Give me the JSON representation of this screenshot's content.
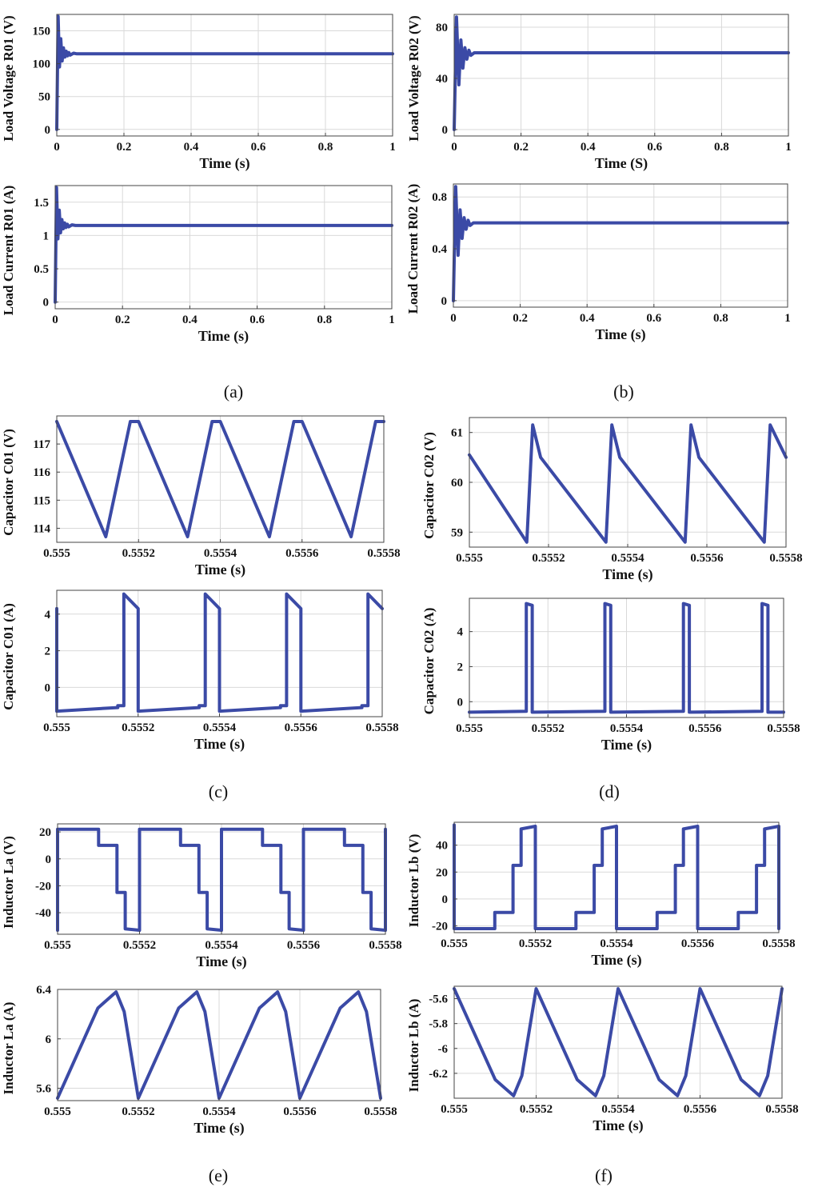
{
  "colors": {
    "trace": "#3b4aa6",
    "grid": "#d9d9d9",
    "axis": "#444444",
    "text": "#111111"
  },
  "captions": {
    "a": "(a)",
    "b": "(b)",
    "c": "(c)",
    "d": "(d)",
    "e": "(e)",
    "f": "(f)"
  },
  "chart_data": [
    {
      "id": "a-top",
      "type": "line",
      "title": "",
      "xlabel": "Time (s)",
      "ylabel": "Load Voltage R01 (V)",
      "xlim": [
        0,
        1
      ],
      "ylim": [
        -10,
        175
      ],
      "xticks": [
        0,
        0.2,
        0.4,
        0.6,
        0.8,
        1
      ],
      "xticklabels": [
        "0",
        "0.2",
        "0.4",
        "0.6",
        "0.8",
        "1"
      ],
      "yticks": [
        0,
        50,
        100,
        150
      ],
      "yticklabels": [
        "0",
        "50",
        "100",
        "150"
      ],
      "grid": true,
      "series": [
        {
          "name": "Load Voltage R01",
          "x": [
            0,
            0.004,
            0.008,
            0.012,
            0.016,
            0.02,
            0.024,
            0.028,
            0.032,
            0.036,
            0.04,
            0.05,
            0.06,
            1
          ],
          "y": [
            0,
            172,
            95,
            138,
            104,
            124,
            110,
            119,
            112,
            117,
            113,
            116,
            115,
            115
          ]
        }
      ]
    },
    {
      "id": "b-top",
      "type": "line",
      "title": "",
      "xlabel": "Time (S)",
      "ylabel": "Load Voltage R02 (V)",
      "xlim": [
        0,
        1
      ],
      "ylim": [
        -5,
        90
      ],
      "xticks": [
        0,
        0.2,
        0.4,
        0.6,
        0.8,
        1
      ],
      "xticklabels": [
        "0",
        "0.2",
        "0.4",
        "0.6",
        "0.8",
        "1"
      ],
      "yticks": [
        0,
        40,
        80
      ],
      "yticklabels": [
        "0",
        "40",
        "80"
      ],
      "grid": true,
      "series": [
        {
          "name": "Load Voltage R02",
          "x": [
            0,
            0.007,
            0.014,
            0.02,
            0.026,
            0.032,
            0.038,
            0.044,
            0.05,
            0.06,
            1
          ],
          "y": [
            0,
            88,
            35,
            70,
            48,
            64,
            55,
            62,
            58,
            60,
            60
          ]
        }
      ]
    },
    {
      "id": "a-bottom",
      "type": "line",
      "title": "",
      "xlabel": "Time (s)",
      "ylabel": "Load Current R01 (A)",
      "xlim": [
        0,
        1
      ],
      "ylim": [
        -0.1,
        1.75
      ],
      "xticks": [
        0,
        0.2,
        0.4,
        0.6,
        0.8,
        1
      ],
      "xticklabels": [
        "0",
        "0.2",
        "0.4",
        "0.6",
        "0.8",
        "1"
      ],
      "yticks": [
        0,
        0.5,
        1,
        1.5
      ],
      "yticklabels": [
        "0",
        "0.5",
        "1",
        "1.5"
      ],
      "grid": true,
      "series": [
        {
          "name": "Load Current R01",
          "x": [
            0,
            0.004,
            0.008,
            0.012,
            0.016,
            0.02,
            0.024,
            0.028,
            0.032,
            0.036,
            0.04,
            0.05,
            0.06,
            1
          ],
          "y": [
            0,
            1.72,
            0.95,
            1.38,
            1.04,
            1.24,
            1.1,
            1.19,
            1.12,
            1.17,
            1.13,
            1.16,
            1.15,
            1.15
          ]
        }
      ]
    },
    {
      "id": "b-bottom",
      "type": "line",
      "title": "",
      "xlabel": "Time (s)",
      "ylabel": "Load Current R02 (A)",
      "xlim": [
        0,
        1
      ],
      "ylim": [
        -0.05,
        0.9
      ],
      "xticks": [
        0,
        0.2,
        0.4,
        0.6,
        0.8,
        1
      ],
      "xticklabels": [
        "0",
        "0.2",
        "0.4",
        "0.6",
        "0.8",
        "1"
      ],
      "yticks": [
        0,
        0.4,
        0.8
      ],
      "yticklabels": [
        "0",
        "0.4",
        "0.8"
      ],
      "grid": true,
      "series": [
        {
          "name": "Load Current R02",
          "x": [
            0,
            0.007,
            0.014,
            0.02,
            0.026,
            0.032,
            0.038,
            0.044,
            0.05,
            0.06,
            1
          ],
          "y": [
            0,
            0.88,
            0.35,
            0.7,
            0.48,
            0.64,
            0.55,
            0.62,
            0.58,
            0.6,
            0.6
          ]
        }
      ]
    },
    {
      "id": "c-top",
      "type": "line",
      "title": "",
      "xlabel": "Time (s)",
      "ylabel": "Capacitor C01 (V)",
      "xlim": [
        0.555,
        0.5558
      ],
      "ylim": [
        113.5,
        118
      ],
      "xticks": [
        0.555,
        0.5552,
        0.5554,
        0.5556,
        0.5558
      ],
      "xticklabels": [
        "0.555",
        "0.5552",
        "0.5554",
        "0.5556",
        "0.5558"
      ],
      "yticks": [
        114,
        115,
        116,
        117
      ],
      "yticklabels": [
        "114",
        "115",
        "116",
        "117"
      ],
      "grid": true,
      "series": [
        {
          "name": "Capacitor C01 voltage",
          "x": [
            0.555,
            0.55512,
            0.55518,
            0.5552,
            0.55532,
            0.55538,
            0.5554,
            0.55552,
            0.55558,
            0.5556,
            0.55572,
            0.55578,
            0.5558
          ],
          "y": [
            117.8,
            113.7,
            117.8,
            117.8,
            113.7,
            117.8,
            117.8,
            113.7,
            117.8,
            117.8,
            113.7,
            117.8,
            117.8
          ]
        }
      ]
    },
    {
      "id": "d-top",
      "type": "line",
      "title": "",
      "xlabel": "Time  (s)",
      "ylabel": "Capacitor C02 (V)",
      "xlim": [
        0.555,
        0.5558
      ],
      "ylim": [
        58.7,
        61.3
      ],
      "xticks": [
        0.555,
        0.5552,
        0.5554,
        0.5556,
        0.5558
      ],
      "xticklabels": [
        "0.555",
        "0.5552",
        "0.5554",
        "0.5556",
        "0.5558"
      ],
      "yticks": [
        59,
        60,
        61
      ],
      "yticklabels": [
        "59",
        "60",
        "61"
      ],
      "grid": true,
      "series": [
        {
          "name": "Capacitor C02 voltage",
          "x": [
            0.555,
            0.555145,
            0.55516,
            0.55518,
            0.555345,
            0.55536,
            0.55538,
            0.555545,
            0.55556,
            0.55558,
            0.555745,
            0.55576,
            0.5558
          ],
          "y": [
            60.55,
            58.8,
            61.15,
            60.5,
            58.8,
            61.15,
            60.5,
            58.8,
            61.15,
            60.5,
            58.8,
            61.15,
            60.5
          ]
        }
      ]
    },
    {
      "id": "c-bottom",
      "type": "line",
      "title": "",
      "xlabel": "Time (s)",
      "ylabel": "Capacitor C01 (A)",
      "xlim": [
        0.555,
        0.5558
      ],
      "ylim": [
        -1.6,
        5.3
      ],
      "xticks": [
        0.555,
        0.5552,
        0.5554,
        0.5556,
        0.5558
      ],
      "xticklabels": [
        "0.555",
        "0.5552",
        "0.5554",
        "0.5556",
        "0.5558"
      ],
      "yticks": [
        0,
        2,
        4
      ],
      "yticklabels": [
        "0",
        "2",
        "4"
      ],
      "grid": true,
      "series": [
        {
          "name": "Capacitor C01 current",
          "x": [
            0.555,
            0.555,
            0.55515,
            0.55515,
            0.555165,
            0.555165,
            0.5552,
            0.5552,
            0.55535,
            0.55535,
            0.555365,
            0.555365,
            0.5554,
            0.5554,
            0.55555,
            0.55555,
            0.555565,
            0.555565,
            0.5556,
            0.5556,
            0.55575,
            0.55575,
            0.555765,
            0.555765,
            0.5558
          ],
          "y": [
            4.3,
            -1.3,
            -1.1,
            -1.0,
            -1.0,
            5.1,
            4.3,
            -1.3,
            -1.1,
            -1.0,
            -1.0,
            5.1,
            4.3,
            -1.3,
            -1.1,
            -1.0,
            -1.0,
            5.1,
            4.3,
            -1.3,
            -1.1,
            -1.0,
            -1.0,
            5.1,
            4.3
          ]
        }
      ]
    },
    {
      "id": "d-bottom",
      "type": "line",
      "title": "",
      "xlabel": "Time (s)",
      "ylabel": "Capacitor C02 (A)",
      "xlim": [
        0.555,
        0.5558
      ],
      "ylim": [
        -0.9,
        5.9
      ],
      "xticks": [
        0.555,
        0.5552,
        0.5554,
        0.5556,
        0.5558
      ],
      "xticklabels": [
        "0.555",
        "0.5552",
        "0.5554",
        "0.5556",
        "0.5558"
      ],
      "yticks": [
        0,
        2,
        4
      ],
      "yticklabels": [
        "0",
        "2",
        "4"
      ],
      "grid": true,
      "series": [
        {
          "name": "Capacitor C02 current",
          "x": [
            0.555,
            0.555145,
            0.555145,
            0.55516,
            0.55516,
            0.555345,
            0.555345,
            0.55536,
            0.55536,
            0.555545,
            0.555545,
            0.55556,
            0.55556,
            0.555745,
            0.555745,
            0.55576,
            0.55576,
            0.5558
          ],
          "y": [
            -0.6,
            -0.55,
            5.6,
            5.5,
            -0.6,
            -0.55,
            5.6,
            5.5,
            -0.6,
            -0.55,
            5.6,
            5.5,
            -0.6,
            -0.55,
            5.6,
            5.5,
            -0.6,
            -0.6
          ]
        }
      ]
    },
    {
      "id": "e-top",
      "type": "line",
      "title": "",
      "xlabel": "Time (s)",
      "ylabel": "Inductor La (V)",
      "xlim": [
        0.555,
        0.5558
      ],
      "ylim": [
        -56,
        26
      ],
      "xticks": [
        0.555,
        0.5552,
        0.5554,
        0.5556,
        0.5558
      ],
      "xticklabels": [
        "0.555",
        "0.5552",
        "0.5554",
        "0.5556",
        "0.5558"
      ],
      "yticks": [
        -40,
        -20,
        0,
        20
      ],
      "yticklabels": [
        "-40",
        "-20",
        "0",
        "20"
      ],
      "grid": true,
      "series": [
        {
          "name": "Inductor La voltage",
          "x": [
            0.555,
            0.555,
            0.5551,
            0.5551,
            0.555145,
            0.555145,
            0.555165,
            0.555165,
            0.5552,
            0.5552,
            0.5553,
            0.5553,
            0.555345,
            0.555345,
            0.555365,
            0.555365,
            0.5554,
            0.5554,
            0.5555,
            0.5555,
            0.555545,
            0.555545,
            0.555565,
            0.555565,
            0.5556,
            0.5556,
            0.5557,
            0.5557,
            0.555745,
            0.555745,
            0.555765,
            0.555765,
            0.5558,
            0.5558
          ],
          "y": [
            -53,
            22,
            22,
            10,
            10,
            -25,
            -25,
            -52,
            -53,
            22,
            22,
            10,
            10,
            -25,
            -25,
            -52,
            -53,
            22,
            22,
            10,
            10,
            -25,
            -25,
            -52,
            -53,
            22,
            22,
            10,
            10,
            -25,
            -25,
            -52,
            -53,
            22
          ]
        }
      ]
    },
    {
      "id": "f-top",
      "type": "line",
      "title": "",
      "xlabel": "Time (s)",
      "ylabel": "Inductor Lb (V)",
      "xlim": [
        0.555,
        0.5558
      ],
      "ylim": [
        -25,
        57
      ],
      "xticks": [
        0.555,
        0.5552,
        0.5554,
        0.5556,
        0.5558
      ],
      "xticklabels": [
        "0.555",
        "0.5552",
        "0.5554",
        "0.5556",
        "0.5558"
      ],
      "yticks": [
        -20,
        0,
        20,
        40
      ],
      "yticklabels": [
        "-20",
        "0",
        "20",
        "40"
      ],
      "grid": true,
      "series": [
        {
          "name": "Inductor Lb voltage",
          "x": [
            0.555,
            0.555,
            0.5551,
            0.5551,
            0.555145,
            0.555145,
            0.555165,
            0.555165,
            0.5552,
            0.5552,
            0.5553,
            0.5553,
            0.555345,
            0.555345,
            0.555365,
            0.555365,
            0.5554,
            0.5554,
            0.5555,
            0.5555,
            0.555545,
            0.555545,
            0.555565,
            0.555565,
            0.5556,
            0.5556,
            0.5557,
            0.5557,
            0.555745,
            0.555745,
            0.555765,
            0.555765,
            0.5558,
            0.5558
          ],
          "y": [
            55,
            -22,
            -22,
            -10,
            -10,
            25,
            25,
            52,
            54,
            -22,
            -22,
            -10,
            -10,
            25,
            25,
            52,
            54,
            -22,
            -22,
            -10,
            -10,
            25,
            25,
            52,
            54,
            -22,
            -22,
            -10,
            -10,
            25,
            25,
            52,
            54,
            -22
          ]
        }
      ]
    },
    {
      "id": "e-bottom",
      "type": "line",
      "title": "",
      "xlabel": "Time (s)",
      "ylabel": "Inductor La (A)",
      "xlim": [
        0.555,
        0.5558
      ],
      "ylim": [
        5.5,
        6.4
      ],
      "xticks": [
        0.555,
        0.5552,
        0.5554,
        0.5556,
        0.5558
      ],
      "xticklabels": [
        "0.555",
        "0.5552",
        "0.5554",
        "0.5556",
        "0.5558"
      ],
      "yticks": [
        5.6,
        6,
        6.4
      ],
      "yticklabels": [
        "5.6",
        "6",
        "6.4"
      ],
      "grid": true,
      "series": [
        {
          "name": "Inductor La current",
          "x": [
            0.555,
            0.5551,
            0.555145,
            0.555165,
            0.5552,
            0.5553,
            0.555345,
            0.555365,
            0.5554,
            0.5555,
            0.555545,
            0.555565,
            0.5556,
            0.5557,
            0.555745,
            0.555765,
            0.5558
          ],
          "y": [
            5.52,
            6.25,
            6.38,
            6.22,
            5.52,
            6.25,
            6.38,
            6.22,
            5.52,
            6.25,
            6.38,
            6.22,
            5.52,
            6.25,
            6.38,
            6.22,
            5.52
          ]
        }
      ]
    },
    {
      "id": "f-bottom",
      "type": "line",
      "title": "",
      "xlabel": "Time (s)",
      "ylabel": "Inductor Lb (A)",
      "xlim": [
        0.555,
        0.5558
      ],
      "ylim": [
        -6.4,
        -5.5
      ],
      "xticks": [
        0.555,
        0.5552,
        0.5554,
        0.5556,
        0.5558
      ],
      "xticklabels": [
        "0.555",
        "0.5552",
        "0.5554",
        "0.5556",
        "0.5558"
      ],
      "yticks": [
        -6.2,
        -6,
        -5.8,
        -5.6
      ],
      "yticklabels": [
        "-6.2",
        "-6",
        "-5.8",
        "-5.6"
      ],
      "grid": true,
      "series": [
        {
          "name": "Inductor Lb current",
          "x": [
            0.555,
            0.5551,
            0.555145,
            0.555165,
            0.5552,
            0.5553,
            0.555345,
            0.555365,
            0.5554,
            0.5555,
            0.555545,
            0.555565,
            0.5556,
            0.5557,
            0.555745,
            0.555765,
            0.5558
          ],
          "y": [
            -5.52,
            -6.25,
            -6.38,
            -6.22,
            -5.52,
            -6.25,
            -6.38,
            -6.22,
            -5.52,
            -6.25,
            -6.38,
            -6.22,
            -5.52,
            -6.25,
            -6.38,
            -6.22,
            -5.52
          ]
        }
      ]
    }
  ]
}
